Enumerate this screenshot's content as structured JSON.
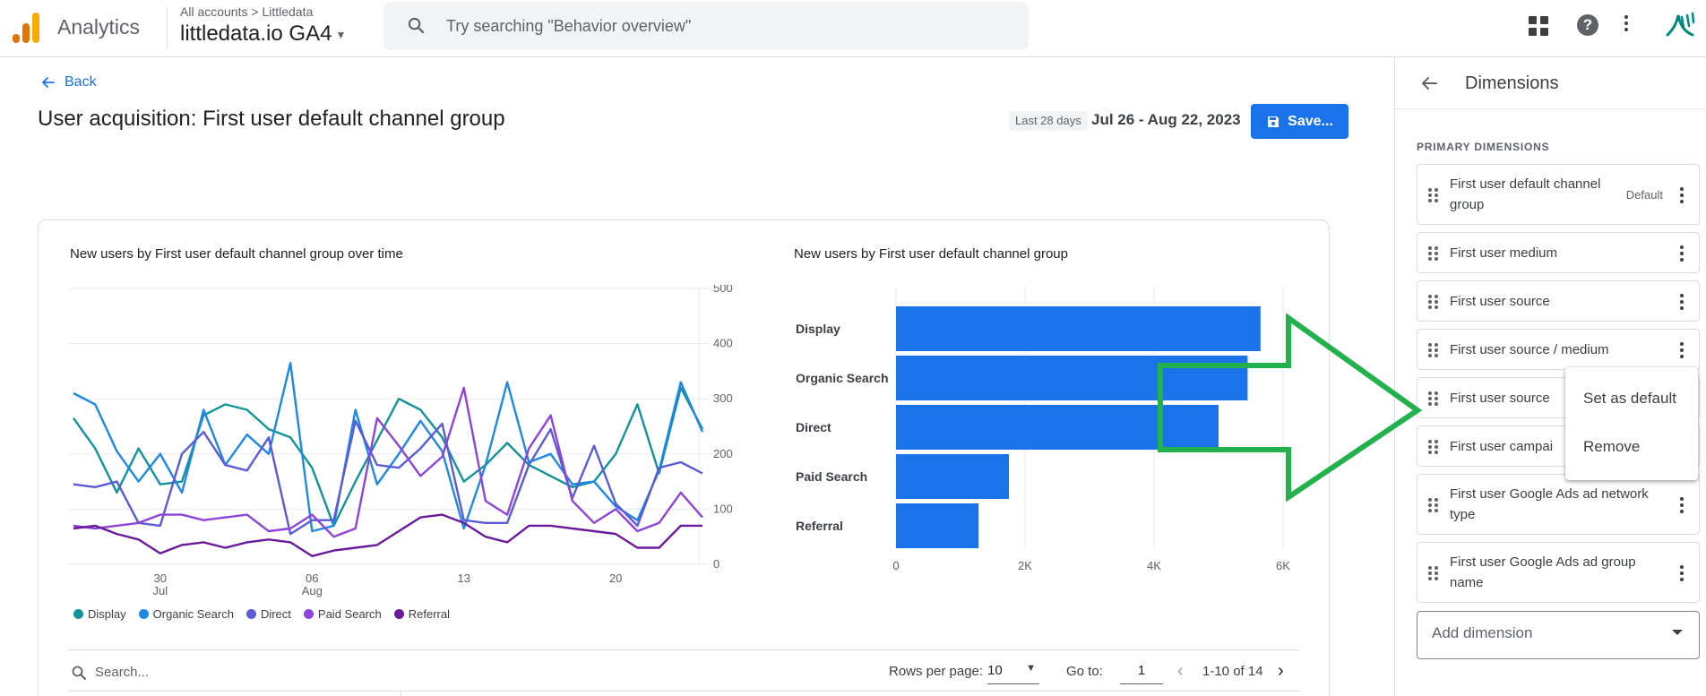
{
  "header": {
    "app_name": "Analytics",
    "breadcrumb_all": "All accounts",
    "breadcrumb_account": "Littledata",
    "property_name": "littledata.io GA4",
    "search_placeholder": "Try searching \"Behavior overview\"",
    "icons": [
      "apps-grid-icon",
      "help-icon",
      "more-vert-icon",
      "littledata-logo"
    ],
    "logo_colors": [
      "#f9ab00",
      "#e37400",
      "#e37400"
    ]
  },
  "main": {
    "back_label": "Back",
    "title": "User acquisition: First user default channel group",
    "date_chip": "Last 28 days",
    "date_range": "Jul 26 - Aug 22, 2023",
    "save_label": "Save...",
    "accent_color": "#1a73e8"
  },
  "line_chart_title": "New users by First user default channel group over time",
  "bar_chart_title": "New users by First user default channel group",
  "chart_data": [
    {
      "type": "line",
      "title": "New users by First user default channel group over time",
      "x_ticks": [
        {
          "label": "30",
          "sub": "Jul",
          "index": 4
        },
        {
          "label": "06",
          "sub": "Aug",
          "index": 11
        },
        {
          "label": "13",
          "sub": "",
          "index": 18
        },
        {
          "label": "20",
          "sub": "",
          "index": 25
        }
      ],
      "y_ticks": [
        0,
        100,
        200,
        300,
        400,
        500
      ],
      "ylim": [
        0,
        500
      ],
      "grid": true,
      "legend_position": "bottom",
      "series": [
        {
          "name": "Display",
          "color": "#12939a",
          "values": [
            265,
            210,
            130,
            210,
            145,
            150,
            270,
            290,
            280,
            245,
            230,
            175,
            70,
            150,
            225,
            300,
            280,
            230,
            150,
            180,
            220,
            180,
            160,
            140,
            150,
            200,
            290,
            165,
            320,
            245
          ]
        },
        {
          "name": "Organic Search",
          "color": "#1e88e5",
          "values": [
            310,
            290,
            205,
            150,
            200,
            130,
            280,
            180,
            235,
            200,
            365,
            60,
            70,
            280,
            145,
            200,
            260,
            205,
            65,
            180,
            330,
            185,
            200,
            145,
            150,
            105,
            80,
            170,
            330,
            240
          ]
        },
        {
          "name": "Direct",
          "color": "#5b5bd6",
          "values": [
            145,
            140,
            150,
            75,
            70,
            200,
            240,
            180,
            170,
            230,
            55,
            80,
            80,
            260,
            180,
            175,
            210,
            255,
            80,
            75,
            75,
            180,
            245,
            120,
            215,
            110,
            70,
            175,
            185,
            165
          ]
        },
        {
          "name": "Paid Search",
          "color": "#8e44d8",
          "values": [
            70,
            65,
            70,
            75,
            90,
            90,
            80,
            85,
            90,
            60,
            65,
            90,
            50,
            65,
            265,
            215,
            160,
            195,
            320,
            115,
            90,
            210,
            270,
            115,
            75,
            100,
            60,
            75,
            130,
            85
          ]
        },
        {
          "name": "Referral",
          "color": "#6a1b9a",
          "values": [
            65,
            70,
            55,
            45,
            20,
            35,
            40,
            30,
            40,
            45,
            40,
            15,
            25,
            30,
            35,
            60,
            85,
            90,
            75,
            50,
            40,
            70,
            70,
            65,
            60,
            55,
            30,
            30,
            70,
            70
          ]
        }
      ]
    },
    {
      "type": "bar",
      "orientation": "horizontal",
      "title": "New users by First user default channel group",
      "categories": [
        "Display",
        "Organic Search",
        "Direct",
        "Paid Search",
        "Referral"
      ],
      "values": [
        5650,
        5450,
        5000,
        1750,
        1280
      ],
      "x_ticks": [
        "0",
        "2K",
        "4K",
        "6K"
      ],
      "xlim": [
        0,
        6000
      ],
      "color": "#1a73e8",
      "grid": true
    }
  ],
  "table": {
    "search_placeholder": "Search...",
    "rows_per_page_label": "Rows per page:",
    "rows_per_page_value": "10",
    "goto_label": "Go to:",
    "goto_value": "1",
    "pagination_text": "1-10 of 14"
  },
  "panel": {
    "title": "Dimensions",
    "section_label": "PRIMARY DIMENSIONS",
    "items": [
      {
        "label": "First user default channel group",
        "badge": "Default"
      },
      {
        "label": "First user medium",
        "badge": ""
      },
      {
        "label": "First user source",
        "badge": ""
      },
      {
        "label": "First user source / medium",
        "badge": ""
      },
      {
        "label": "First user source",
        "badge": ""
      },
      {
        "label": "First user campai",
        "badge": ""
      },
      {
        "label": "First user Google Ads ad network type",
        "badge": ""
      },
      {
        "label": "First user Google Ads ad group name",
        "badge": ""
      }
    ],
    "add_dimension_placeholder": "Add dimension"
  },
  "context_menu": {
    "items": [
      "Set as default",
      "Remove"
    ]
  },
  "overlay": {
    "arrow_color": "#22b14c"
  }
}
